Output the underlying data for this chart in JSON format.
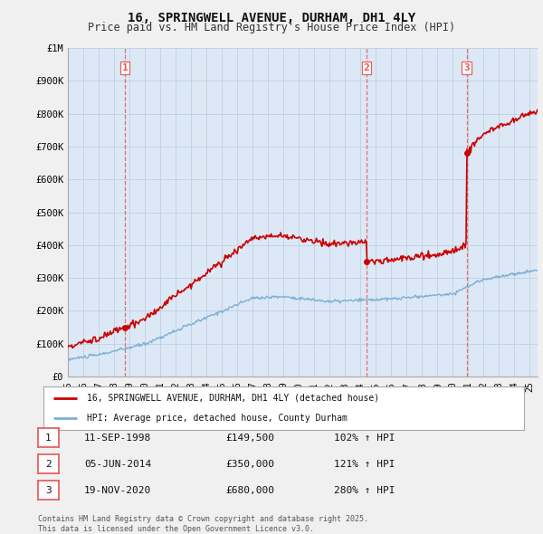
{
  "title": "16, SPRINGWELL AVENUE, DURHAM, DH1 4LY",
  "subtitle": "Price paid vs. HM Land Registry's House Price Index (HPI)",
  "legend_line1": "16, SPRINGWELL AVENUE, DURHAM, DH1 4LY (detached house)",
  "legend_line2": "HPI: Average price, detached house, County Durham",
  "footer": "Contains HM Land Registry data © Crown copyright and database right 2025.\nThis data is licensed under the Open Government Licence v3.0.",
  "sales": [
    {
      "num": 1,
      "date": "11-SEP-1998",
      "price": 149500,
      "pct": "102%",
      "year": 1998.7
    },
    {
      "num": 2,
      "date": "05-JUN-2014",
      "price": 350000,
      "pct": "121%",
      "year": 2014.4
    },
    {
      "num": 3,
      "date": "19-NOV-2020",
      "price": 680000,
      "pct": "280%",
      "year": 2020.9
    }
  ],
  "red_line_color": "#cc0000",
  "blue_line_color": "#7bafd4",
  "dashed_color": "#e86060",
  "background_color": "#f0f0f0",
  "plot_bg_color": "#dce8f5",
  "grid_color": "#c0cfe0",
  "ylim": [
    0,
    1000000
  ],
  "xlim": [
    1995,
    2025.5
  ],
  "yticks": [
    0,
    100000,
    200000,
    300000,
    400000,
    500000,
    600000,
    700000,
    800000,
    900000,
    1000000
  ],
  "ytick_labels": [
    "£0",
    "£100K",
    "£200K",
    "£300K",
    "£400K",
    "£500K",
    "£600K",
    "£700K",
    "£800K",
    "£900K",
    "£1M"
  ],
  "xtick_labels": [
    "95",
    "96",
    "97",
    "98",
    "99",
    "00",
    "01",
    "02",
    "03",
    "04",
    "05",
    "06",
    "07",
    "08",
    "09",
    "10",
    "11",
    "12",
    "13",
    "14",
    "15",
    "16",
    "17",
    "18",
    "19",
    "20",
    "21",
    "22",
    "23",
    "24",
    "25"
  ],
  "xticks": [
    1995,
    1996,
    1997,
    1998,
    1999,
    2000,
    2001,
    2002,
    2003,
    2004,
    2005,
    2006,
    2007,
    2008,
    2009,
    2010,
    2011,
    2012,
    2013,
    2014,
    2015,
    2016,
    2017,
    2018,
    2019,
    2020,
    2021,
    2022,
    2023,
    2024,
    2025
  ]
}
